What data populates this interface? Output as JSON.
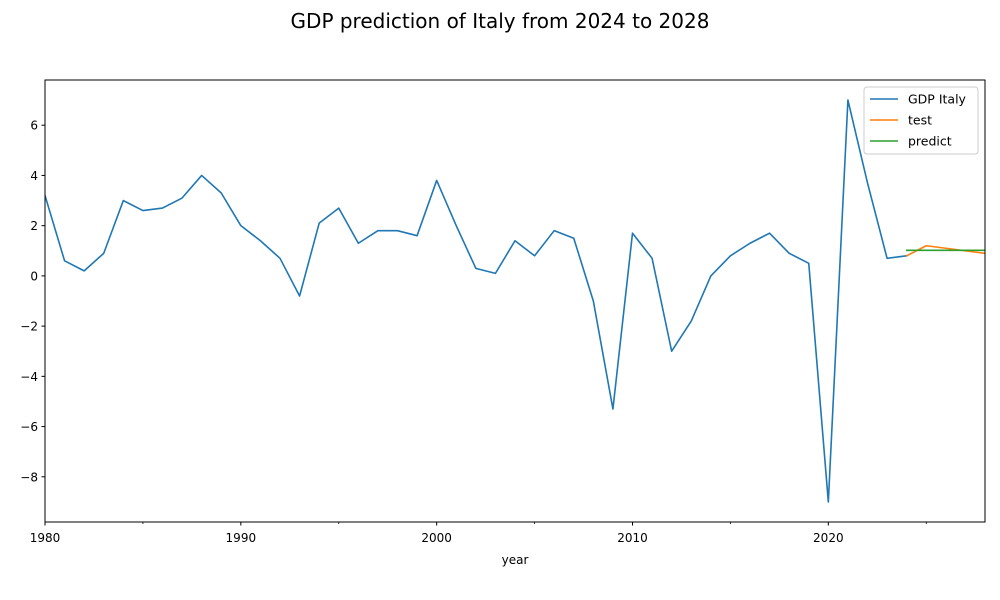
{
  "chart_data": {
    "type": "line",
    "title": "GDP prediction of Italy from 2024 to 2028",
    "xlabel": "year",
    "ylabel": "",
    "xlim": [
      1980,
      2028
    ],
    "ylim": [
      -9.8,
      7.8
    ],
    "x_major_ticks": [
      1980,
      1990,
      2000,
      2010,
      2020
    ],
    "x_minor_ticks": [
      1985,
      1995,
      2005,
      2015,
      2025
    ],
    "y_ticks": [
      -8,
      -6,
      -4,
      -2,
      0,
      2,
      4,
      6
    ],
    "legend_position": "top-right",
    "grid": false,
    "series": [
      {
        "name": "GDP Italy",
        "color": "#1f77b4",
        "x": [
          1980,
          1981,
          1982,
          1983,
          1984,
          1985,
          1986,
          1987,
          1988,
          1989,
          1990,
          1991,
          1992,
          1993,
          1994,
          1995,
          1996,
          1997,
          1998,
          1999,
          2000,
          2001,
          2002,
          2003,
          2004,
          2005,
          2006,
          2007,
          2008,
          2009,
          2010,
          2011,
          2012,
          2013,
          2014,
          2015,
          2016,
          2017,
          2018,
          2019,
          2020,
          2021,
          2022,
          2023,
          2024
        ],
        "values": [
          3.2,
          0.6,
          0.2,
          0.9,
          3.0,
          2.6,
          2.7,
          3.1,
          4.0,
          3.3,
          2.0,
          1.4,
          0.7,
          -0.8,
          2.1,
          2.7,
          1.3,
          1.8,
          1.8,
          1.6,
          3.8,
          2.0,
          0.3,
          0.1,
          1.4,
          0.8,
          1.8,
          1.5,
          -1.0,
          -5.3,
          1.7,
          0.7,
          -3.0,
          -1.8,
          0.0,
          0.8,
          1.3,
          1.7,
          0.9,
          0.5,
          -9.0,
          7.0,
          3.7,
          0.7,
          0.8
        ]
      },
      {
        "name": "test",
        "color": "#ff7f0e",
        "x": [
          2024,
          2025,
          2026,
          2027,
          2028
        ],
        "values": [
          0.8,
          1.2,
          1.1,
          1.0,
          0.9
        ]
      },
      {
        "name": "predict",
        "color": "#2ca02c",
        "x": [
          2024,
          2025,
          2026,
          2027,
          2028
        ],
        "values": [
          1.02,
          1.02,
          1.02,
          1.02,
          1.02
        ]
      }
    ]
  }
}
